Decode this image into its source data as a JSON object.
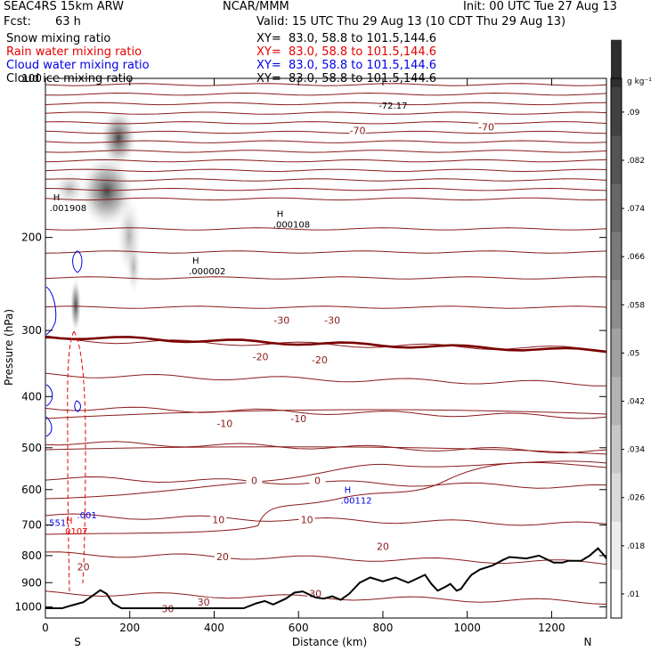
{
  "header": {
    "model": "SEAC4RS 15km ARW",
    "org": "NCAR/MMM",
    "init": "Init: 00 UTC Tue 27 Aug 13",
    "fcst_label": "Fcst:",
    "fcst_value": "63 h",
    "valid": "Valid: 15 UTC Thu 29 Aug 13 (10 CDT Thu 29 Aug 13)",
    "fields": [
      {
        "name": "Snow mixing ratio",
        "xy": "XY=  83.0, 58.8 to 101.5,144.6",
        "color": "#000000"
      },
      {
        "name": "Rain water mixing ratio",
        "xy": "XY=  83.0, 58.8 to 101.5,144.6",
        "color": "#e60000"
      },
      {
        "name": "Cloud water mixing ratio",
        "xy": "XY=  83.0, 58.8 to 101.5,144.6",
        "color": "#0000e6"
      },
      {
        "name": "Cloud ice mixing ratio",
        "xy": "XY=  83.0, 58.8 to 101.5,144.6",
        "color": "#000000"
      }
    ]
  },
  "chart_data": {
    "type": "cross-section",
    "xlabel": "Distance (km)",
    "ylabel": "Pressure (hPa)",
    "xlim": [
      0,
      1330
    ],
    "ylim": [
      1050,
      100
    ],
    "y_scale": "log",
    "xticks": [
      0,
      200,
      400,
      600,
      800,
      1000,
      1200
    ],
    "yticks": [
      100,
      200,
      300,
      400,
      500,
      600,
      700,
      800,
      900,
      1000
    ],
    "end_labels": {
      "left": "S",
      "right": "N"
    },
    "colorbar": {
      "unit": "g kg⁻¹",
      "levels": [
        ".01",
        ".018",
        ".026",
        ".034",
        ".042",
        ".05",
        ".058",
        ".066",
        ".074",
        ".082",
        ".09"
      ]
    },
    "temperature_contours": {
      "unit": "°C",
      "labels": [
        {
          "text": "-70",
          "x": 740,
          "p": 127
        },
        {
          "text": "-70",
          "x": 1045,
          "p": 125
        },
        {
          "text": "-30",
          "x": 560,
          "p": 290
        },
        {
          "text": "-30",
          "x": 680,
          "p": 290
        },
        {
          "text": "-20",
          "x": 510,
          "p": 340
        },
        {
          "text": "-20",
          "x": 650,
          "p": 345
        },
        {
          "text": "-10",
          "x": 425,
          "p": 455
        },
        {
          "text": "-10",
          "x": 600,
          "p": 445
        },
        {
          "text": "0",
          "x": 495,
          "p": 583
        },
        {
          "text": "0",
          "x": 645,
          "p": 583
        },
        {
          "text": "10",
          "x": 410,
          "p": 692
        },
        {
          "text": "10",
          "x": 620,
          "p": 692
        },
        {
          "text": "20",
          "x": 800,
          "p": 778
        },
        {
          "text": "20",
          "x": 420,
          "p": 812
        },
        {
          "text": "20",
          "x": 90,
          "p": 850
        },
        {
          "text": "30",
          "x": 640,
          "p": 955
        },
        {
          "text": "30",
          "x": 375,
          "p": 990
        },
        {
          "text": "30",
          "x": 290,
          "p": 1020
        }
      ]
    },
    "extrema": [
      {
        "mark": "H",
        "value": ".001908",
        "x": 10,
        "p": 177,
        "color": "#000000"
      },
      {
        "mark": "H",
        "value": ".000108",
        "x": 540,
        "p": 190,
        "color": "#000000"
      },
      {
        "mark": "H",
        "value": ".000002",
        "x": 340,
        "p": 233,
        "color": "#000000"
      },
      {
        "mark": "H",
        "value": ".00112",
        "x": 700,
        "p": 633,
        "color": "#0000e6"
      },
      {
        "mark": "H",
        "value": ".0107",
        "x": 40,
        "p": 724,
        "color": "#e60000"
      }
    ],
    "small_labels": [
      {
        "text": ".001",
        "x": 75,
        "p": 680,
        "color": "#0000e6"
      },
      {
        "text": ".551",
        "x": 2,
        "p": 703,
        "color": "#0000e6"
      },
      {
        "text": "-72.17",
        "x": 790,
        "p": 114,
        "color": "#000000"
      }
    ],
    "terrain": [
      [
        0,
        1006
      ],
      [
        40,
        1006
      ],
      [
        60,
        995
      ],
      [
        90,
        980
      ],
      [
        110,
        955
      ],
      [
        130,
        930
      ],
      [
        145,
        945
      ],
      [
        160,
        985
      ],
      [
        180,
        1006
      ],
      [
        470,
        1006
      ],
      [
        500,
        985
      ],
      [
        520,
        975
      ],
      [
        540,
        990
      ],
      [
        570,
        965
      ],
      [
        590,
        940
      ],
      [
        610,
        935
      ],
      [
        640,
        960
      ],
      [
        660,
        965
      ],
      [
        680,
        955
      ],
      [
        700,
        970
      ],
      [
        720,
        945
      ],
      [
        745,
        900
      ],
      [
        770,
        880
      ],
      [
        800,
        895
      ],
      [
        830,
        880
      ],
      [
        860,
        900
      ],
      [
        880,
        885
      ],
      [
        900,
        870
      ],
      [
        915,
        905
      ],
      [
        930,
        932
      ],
      [
        950,
        915
      ],
      [
        960,
        905
      ],
      [
        975,
        932
      ],
      [
        985,
        925
      ],
      [
        1000,
        890
      ],
      [
        1010,
        870
      ],
      [
        1030,
        850
      ],
      [
        1060,
        835
      ],
      [
        1085,
        815
      ],
      [
        1100,
        805
      ],
      [
        1140,
        810
      ],
      [
        1170,
        800
      ],
      [
        1205,
        825
      ],
      [
        1225,
        825
      ],
      [
        1240,
        818
      ],
      [
        1270,
        818
      ],
      [
        1290,
        800
      ],
      [
        1310,
        775
      ],
      [
        1325,
        800
      ],
      [
        1330,
        810
      ]
    ]
  }
}
